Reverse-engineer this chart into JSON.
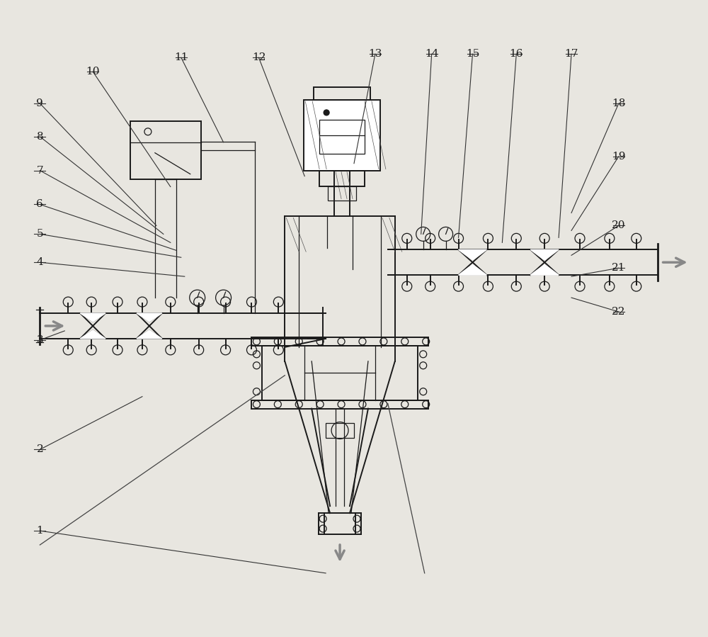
{
  "bg_color": "#e8e6e0",
  "line_color": "#1a1a1a",
  "label_color": "#1a1a1a",
  "fig_width": 10.0,
  "fig_height": 8.99,
  "dpi": 100,
  "label_data": [
    [
      "9",
      55,
      145
    ],
    [
      "8",
      55,
      192
    ],
    [
      "7",
      55,
      240
    ],
    [
      "6",
      55,
      288
    ],
    [
      "5",
      55,
      330
    ],
    [
      "4",
      55,
      370
    ],
    [
      "3",
      55,
      480
    ],
    [
      "2",
      55,
      635
    ],
    [
      "1",
      55,
      750
    ],
    [
      "10",
      130,
      100
    ],
    [
      "11",
      255,
      80
    ],
    [
      "12",
      365,
      80
    ],
    [
      "13",
      530,
      75
    ],
    [
      "14",
      610,
      75
    ],
    [
      "15",
      668,
      75
    ],
    [
      "16",
      730,
      75
    ],
    [
      "17",
      808,
      75
    ],
    [
      "18",
      875,
      145
    ],
    [
      "19",
      875,
      220
    ],
    [
      "20",
      875,
      318
    ],
    [
      "21",
      875,
      378
    ],
    [
      "22",
      875,
      440
    ]
  ],
  "ref_lines": [
    [
      55,
      145,
      220,
      318
    ],
    [
      55,
      192,
      230,
      330
    ],
    [
      55,
      240,
      240,
      342
    ],
    [
      55,
      288,
      248,
      353
    ],
    [
      55,
      330,
      255,
      363
    ],
    [
      55,
      370,
      260,
      390
    ],
    [
      55,
      480,
      90,
      467
    ],
    [
      55,
      635,
      200,
      560
    ],
    [
      55,
      750,
      460,
      810
    ],
    [
      130,
      100,
      240,
      263
    ],
    [
      255,
      80,
      315,
      200
    ],
    [
      365,
      80,
      430,
      248
    ],
    [
      530,
      75,
      500,
      230
    ],
    [
      610,
      75,
      595,
      330
    ],
    [
      668,
      75,
      648,
      335
    ],
    [
      730,
      75,
      710,
      342
    ],
    [
      808,
      75,
      790,
      335
    ],
    [
      875,
      145,
      808,
      300
    ],
    [
      875,
      220,
      808,
      325
    ],
    [
      875,
      318,
      808,
      360
    ],
    [
      875,
      378,
      808,
      390
    ],
    [
      875,
      440,
      808,
      420
    ]
  ]
}
